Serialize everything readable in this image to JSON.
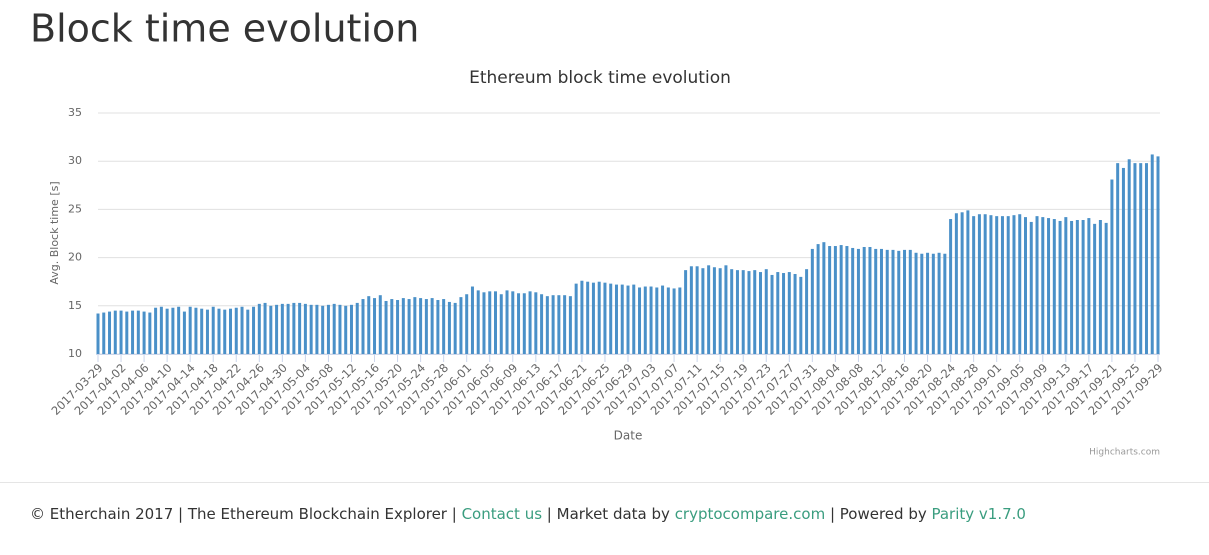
{
  "header": {
    "title": "Block time evolution"
  },
  "chart_data": {
    "type": "bar",
    "title": "Ethereum block time evolution",
    "x_label": "Date",
    "y_label": "Avg. Block time [s]",
    "credit": "Highcharts.com",
    "color": "#4a90c8",
    "grid": true,
    "ylim": [
      10,
      35
    ],
    "yticks": [
      10,
      15,
      20,
      25,
      30,
      35
    ],
    "categories": [
      "2017-03-29",
      null,
      null,
      null,
      "2017-04-02",
      null,
      null,
      null,
      "2017-04-06",
      null,
      null,
      null,
      "2017-04-10",
      null,
      null,
      null,
      "2017-04-14",
      null,
      null,
      null,
      "2017-04-18",
      null,
      null,
      null,
      "2017-04-22",
      null,
      null,
      null,
      "2017-04-26",
      null,
      null,
      null,
      "2017-04-30",
      null,
      null,
      null,
      "2017-05-04",
      null,
      null,
      null,
      "2017-05-08",
      null,
      null,
      null,
      "2017-05-12",
      null,
      null,
      null,
      "2017-05-16",
      null,
      null,
      null,
      "2017-05-20",
      null,
      null,
      null,
      "2017-05-24",
      null,
      null,
      null,
      "2017-05-28",
      null,
      null,
      null,
      "2017-06-01",
      null,
      null,
      null,
      "2017-06-05",
      null,
      null,
      null,
      "2017-06-09",
      null,
      null,
      null,
      "2017-06-13",
      null,
      null,
      null,
      "2017-06-17",
      null,
      null,
      null,
      "2017-06-21",
      null,
      null,
      null,
      "2017-06-25",
      null,
      null,
      null,
      "2017-06-29",
      null,
      null,
      null,
      "2017-07-03",
      null,
      null,
      null,
      "2017-07-07",
      null,
      null,
      null,
      "2017-07-11",
      null,
      null,
      null,
      "2017-07-15",
      null,
      null,
      null,
      "2017-07-19",
      null,
      null,
      null,
      "2017-07-23",
      null,
      null,
      null,
      "2017-07-27",
      null,
      null,
      null,
      "2017-07-31",
      null,
      null,
      null,
      "2017-08-04",
      null,
      null,
      null,
      "2017-08-08",
      null,
      null,
      null,
      "2017-08-12",
      null,
      null,
      null,
      "2017-08-16",
      null,
      null,
      null,
      "2017-08-20",
      null,
      null,
      null,
      "2017-08-24",
      null,
      null,
      null,
      "2017-08-28",
      null,
      null,
      null,
      "2017-09-01",
      null,
      null,
      null,
      "2017-09-05",
      null,
      null,
      null,
      "2017-09-09",
      null,
      null,
      null,
      "2017-09-13",
      null,
      null,
      null,
      "2017-09-17",
      null,
      null,
      null,
      "2017-09-21",
      null,
      null,
      null,
      "2017-09-25",
      null,
      null,
      null,
      "2017-09-29"
    ],
    "values": [
      14.2,
      14.3,
      14.4,
      14.5,
      14.5,
      14.4,
      14.5,
      14.5,
      14.4,
      14.3,
      14.8,
      14.9,
      14.7,
      14.8,
      14.9,
      14.4,
      14.9,
      14.8,
      14.7,
      14.6,
      14.9,
      14.7,
      14.6,
      14.7,
      14.8,
      14.9,
      14.6,
      14.9,
      15.2,
      15.3,
      15.0,
      15.1,
      15.2,
      15.2,
      15.3,
      15.3,
      15.2,
      15.1,
      15.1,
      15.0,
      15.1,
      15.2,
      15.1,
      15.0,
      15.1,
      15.3,
      15.7,
      16.0,
      15.8,
      16.1,
      15.5,
      15.7,
      15.6,
      15.8,
      15.7,
      15.9,
      15.8,
      15.7,
      15.8,
      15.6,
      15.7,
      15.4,
      15.3,
      15.9,
      16.2,
      17.0,
      16.6,
      16.4,
      16.5,
      16.5,
      16.2,
      16.6,
      16.5,
      16.3,
      16.3,
      16.5,
      16.4,
      16.2,
      16.0,
      16.1,
      16.1,
      16.1,
      16.0,
      17.3,
      17.6,
      17.5,
      17.4,
      17.5,
      17.4,
      17.3,
      17.2,
      17.2,
      17.1,
      17.2,
      16.9,
      17.0,
      17.0,
      16.9,
      17.1,
      16.9,
      16.8,
      16.9,
      18.7,
      19.1,
      19.1,
      18.9,
      19.2,
      19.0,
      18.9,
      19.2,
      18.8,
      18.7,
      18.7,
      18.6,
      18.7,
      18.5,
      18.8,
      18.2,
      18.5,
      18.4,
      18.5,
      18.3,
      18.0,
      18.8,
      20.9,
      21.4,
      21.6,
      21.2,
      21.2,
      21.3,
      21.2,
      21.0,
      20.9,
      21.1,
      21.1,
      20.9,
      20.9,
      20.8,
      20.8,
      20.7,
      20.8,
      20.8,
      20.5,
      20.4,
      20.5,
      20.4,
      20.5,
      20.4,
      24.0,
      24.6,
      24.7,
      24.9,
      24.3,
      24.5,
      24.5,
      24.4,
      24.3,
      24.3,
      24.3,
      24.4,
      24.5,
      24.2,
      23.7,
      24.3,
      24.2,
      24.1,
      24.0,
      23.8,
      24.2,
      23.8,
      23.9,
      23.9,
      24.1,
      23.5,
      23.9,
      23.6,
      28.1,
      29.8,
      29.3,
      30.2,
      29.8,
      29.8,
      29.8,
      30.7,
      30.5
    ]
  },
  "footer": {
    "prefix": "© Etherchain 2017 | The Ethereum Blockchain Explorer | ",
    "contact": "Contact us",
    "market": " | Market data by ",
    "market_link": "cryptocompare.com",
    "powered": " | Powered by ",
    "powered_link": "Parity v1.7.0"
  }
}
